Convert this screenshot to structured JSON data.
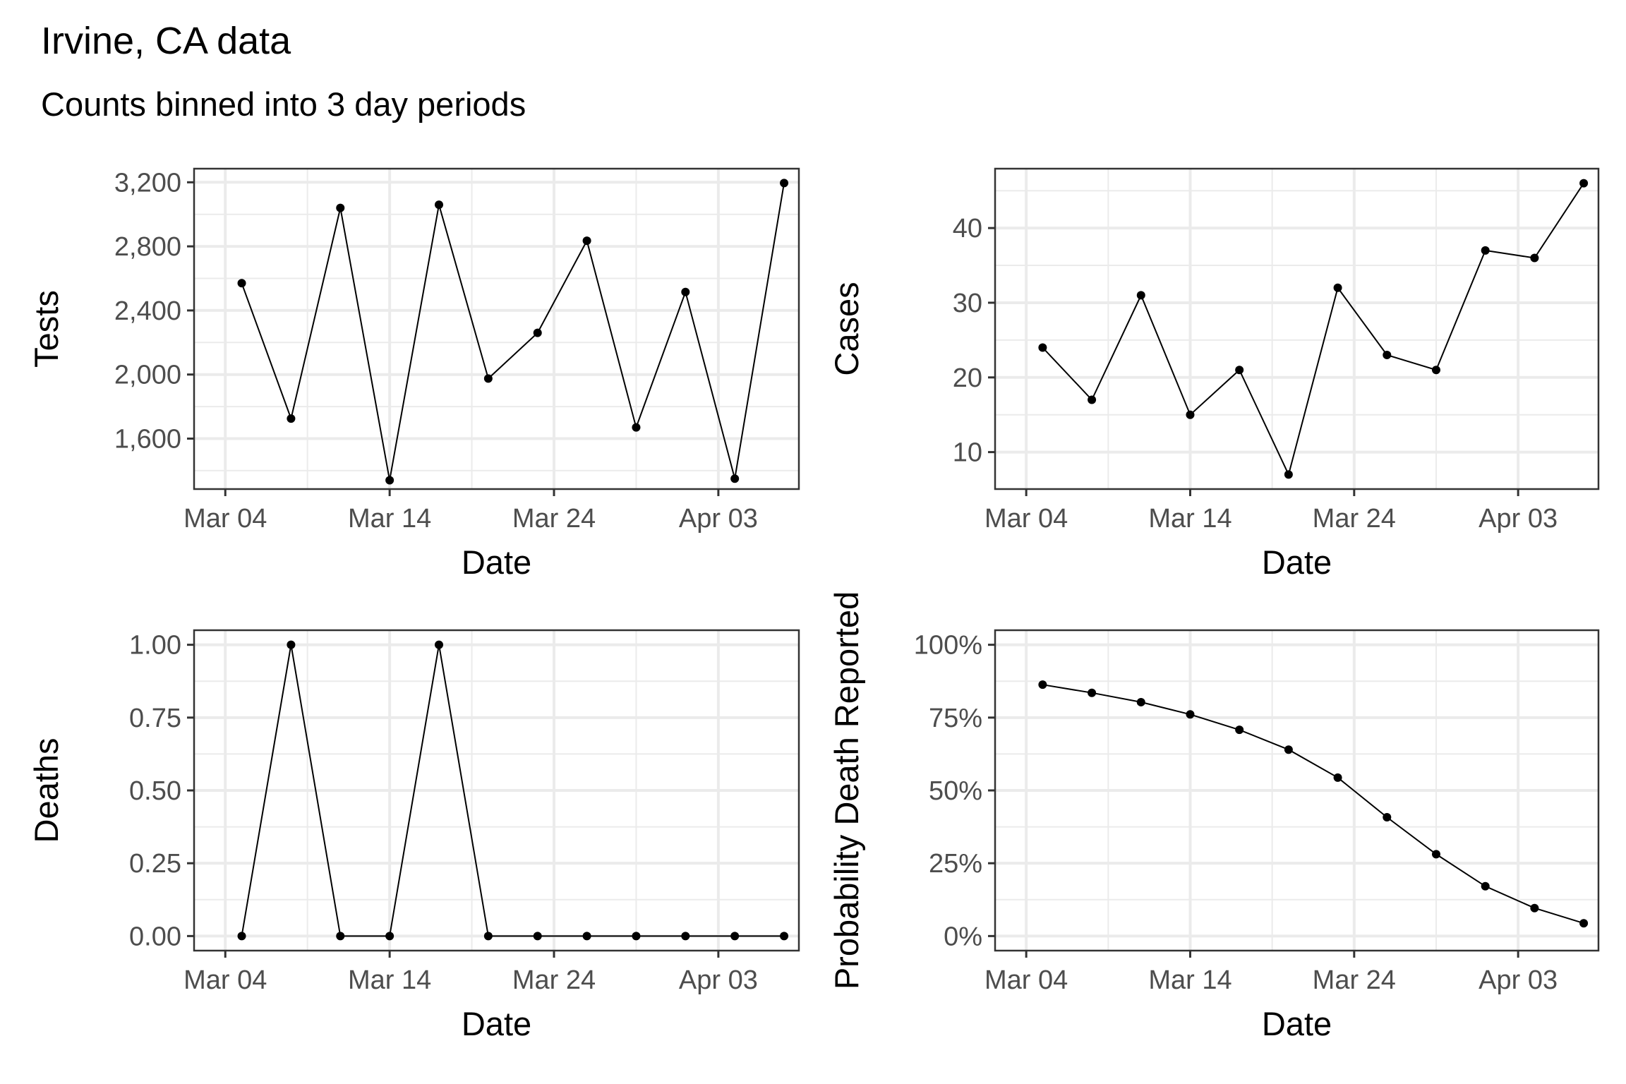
{
  "title": "Irvine, CA data",
  "subtitle": "Counts binned into 3 day periods",
  "chart_data": [
    {
      "type": "line",
      "id": "tests",
      "xlabel": "Date",
      "ylabel": "Tests",
      "x": [
        "Mar 05",
        "Mar 08",
        "Mar 11",
        "Mar 14",
        "Mar 17",
        "Mar 20",
        "Mar 23",
        "Mar 26",
        "Mar 29",
        "Apr 01",
        "Apr 04",
        "Apr 07"
      ],
      "values": [
        2570,
        1725,
        3040,
        1340,
        3060,
        1975,
        2260,
        2835,
        1670,
        2515,
        1350,
        3195
      ],
      "ylim": [
        1285,
        3285
      ],
      "y_ticks": [
        1600,
        2000,
        2400,
        2800,
        3200
      ],
      "y_tick_labels": [
        "1,600",
        "2,000",
        "2,400",
        "2,800",
        "3,200"
      ],
      "x_ticks": [
        "Mar 04",
        "Mar 14",
        "Mar 24",
        "Apr 03"
      ],
      "grid": true
    },
    {
      "type": "line",
      "id": "cases",
      "xlabel": "Date",
      "ylabel": "Cases",
      "x": [
        "Mar 05",
        "Mar 08",
        "Mar 11",
        "Mar 14",
        "Mar 17",
        "Mar 20",
        "Mar 23",
        "Mar 26",
        "Mar 29",
        "Apr 01",
        "Apr 04",
        "Apr 07"
      ],
      "values": [
        24,
        17,
        31,
        15,
        21,
        7,
        32,
        23,
        21,
        37,
        36,
        46
      ],
      "ylim": [
        5.05,
        47.95
      ],
      "y_ticks": [
        10,
        20,
        30,
        40
      ],
      "y_tick_labels": [
        "10",
        "20",
        "30",
        "40"
      ],
      "x_ticks": [
        "Mar 04",
        "Mar 14",
        "Mar 24",
        "Apr 03"
      ],
      "grid": true
    },
    {
      "type": "line",
      "id": "deaths",
      "xlabel": "Date",
      "ylabel": "Deaths",
      "x": [
        "Mar 05",
        "Mar 08",
        "Mar 11",
        "Mar 14",
        "Mar 17",
        "Mar 20",
        "Mar 23",
        "Mar 26",
        "Mar 29",
        "Apr 01",
        "Apr 04",
        "Apr 07"
      ],
      "values": [
        0,
        1,
        0,
        0,
        1,
        0,
        0,
        0,
        0,
        0,
        0,
        0
      ],
      "ylim": [
        -0.05,
        1.05
      ],
      "y_ticks": [
        0,
        0.25,
        0.5,
        0.75,
        1
      ],
      "y_tick_labels": [
        "0.00",
        "0.25",
        "0.50",
        "0.75",
        "1.00"
      ],
      "x_ticks": [
        "Mar 04",
        "Mar 14",
        "Mar 24",
        "Apr 03"
      ],
      "grid": true
    },
    {
      "type": "line",
      "id": "probability",
      "xlabel": "Date",
      "ylabel": "Probability Death Reported",
      "x": [
        "Mar 05",
        "Mar 08",
        "Mar 11",
        "Mar 14",
        "Mar 17",
        "Mar 20",
        "Mar 23",
        "Mar 26",
        "Mar 29",
        "Apr 01",
        "Apr 04",
        "Apr 07"
      ],
      "values": [
        0.863,
        0.835,
        0.803,
        0.761,
        0.708,
        0.64,
        0.544,
        0.408,
        0.281,
        0.171,
        0.096,
        0.044
      ],
      "ylim": [
        -0.05,
        1.05
      ],
      "y_ticks": [
        0,
        0.25,
        0.5,
        0.75,
        1
      ],
      "y_tick_labels": [
        "0%",
        "25%",
        "50%",
        "75%",
        "100%"
      ],
      "x_ticks": [
        "Mar 04",
        "Mar 14",
        "Mar 24",
        "Apr 03"
      ],
      "grid": true
    }
  ]
}
